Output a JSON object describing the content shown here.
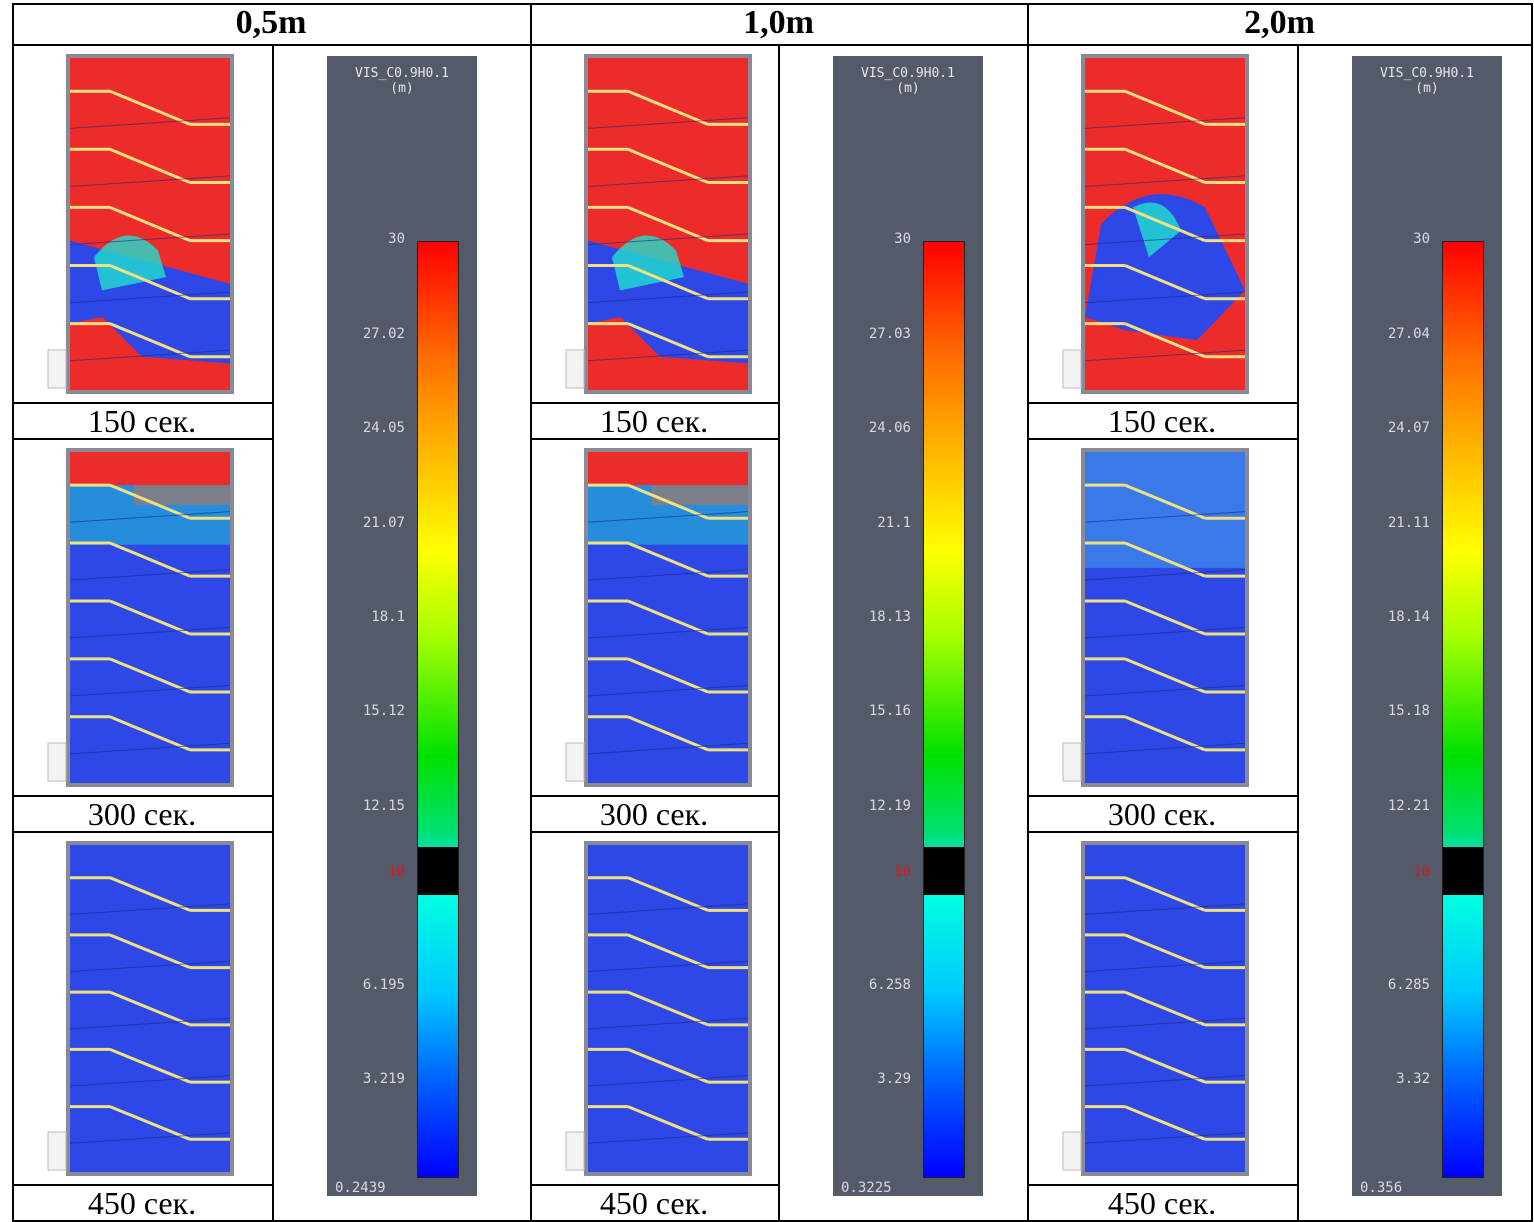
{
  "columns": [
    {
      "header": "0,5m",
      "captions": [
        "150 сек.",
        "300 сек.",
        "450 сек."
      ],
      "legend": {
        "title_line1": "VIS_C0.9H0.1",
        "title_line2": "(m)",
        "ticks": [
          "30",
          "27.02",
          "24.05",
          "21.07",
          "18.1",
          "15.12",
          "12.15",
          "10",
          "6.195",
          "3.219",
          "0.2439"
        ],
        "threshold": "10"
      },
      "states": [
        "red-smoke-lower",
        "blue-smoke-top",
        "blue-full"
      ]
    },
    {
      "header": "1,0m",
      "captions": [
        "150 сек.",
        "300 сек.",
        "450 сек."
      ],
      "legend": {
        "title_line1": "VIS_C0.9H0.1",
        "title_line2": "(m)",
        "ticks": [
          "30",
          "27.03",
          "24.06",
          "21.1",
          "18.13",
          "15.16",
          "12.19",
          "10",
          "6.258",
          "3.29",
          "0.3225"
        ],
        "threshold": "10"
      },
      "states": [
        "red-smoke-lower",
        "blue-smoke-top",
        "blue-full"
      ]
    },
    {
      "header": "2,0m",
      "captions": [
        "150 сек.",
        "300 сек.",
        "450 сек."
      ],
      "legend": {
        "title_line1": "VIS_C0.9H0.1",
        "title_line2": "(m)",
        "ticks": [
          "30",
          "27.04",
          "24.07",
          "21.11",
          "18.14",
          "15.18",
          "12.21",
          "10",
          "6.285",
          "3.32",
          "0.356"
        ],
        "threshold": "10"
      },
      "states": [
        "red-smoke-mid",
        "blue-light",
        "blue-full"
      ]
    }
  ],
  "colors": {
    "high_visibility": "#ee2b2b",
    "low_visibility": "#2d48e6",
    "cyan": "#1fe0d0",
    "legend_bg": "#555a6a",
    "threshold_band": "#000000",
    "threshold_label": "#d21c1c",
    "stair_edge": "#f0e080"
  }
}
